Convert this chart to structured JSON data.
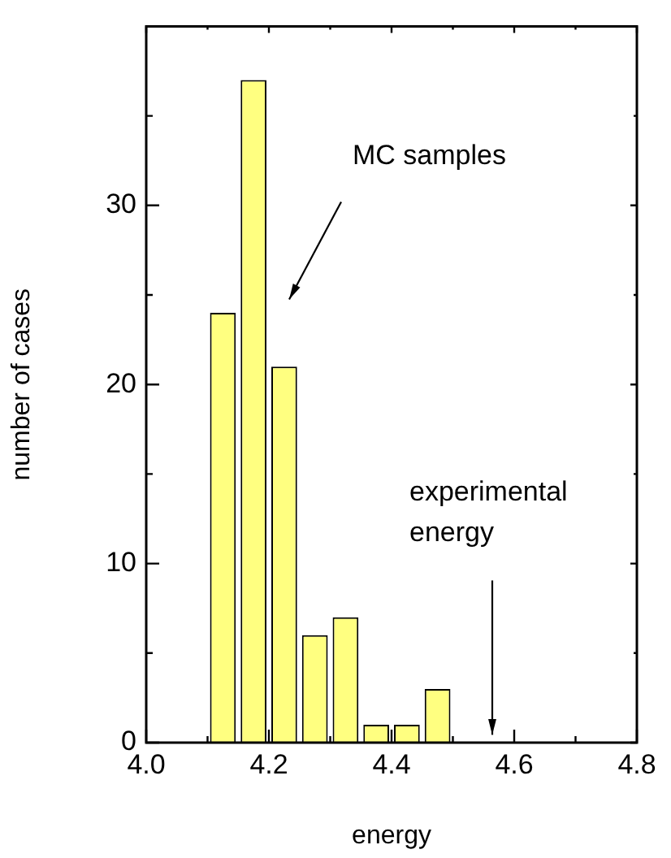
{
  "chart_data": {
    "type": "histogram",
    "xlabel": "energy",
    "ylabel": "number of cases",
    "bins": [
      4.1,
      4.15,
      4.2,
      4.25,
      4.3,
      4.35,
      4.4,
      4.45,
      4.5
    ],
    "values": [
      24,
      37,
      21,
      6,
      7,
      1,
      1,
      3
    ],
    "color": "#ffff80",
    "xlim": [
      4.0,
      4.8
    ],
    "xticks": [
      {
        "value": 4.0,
        "label": "4.0"
      },
      {
        "value": 4.1,
        "label": null
      },
      {
        "value": 4.2,
        "label": "4.2"
      },
      {
        "value": 4.3,
        "label": null
      },
      {
        "value": 4.4,
        "label": "4.4"
      },
      {
        "value": 4.5,
        "label": null
      },
      {
        "value": 4.6,
        "label": "4.6"
      },
      {
        "value": 4.7,
        "label": null
      },
      {
        "value": 4.8,
        "label": "4.8"
      }
    ],
    "ylim": [
      0,
      40
    ],
    "yticks": [
      0,
      {
        "value": 5,
        "label": null
      },
      10,
      {
        "value": 15,
        "label": null
      },
      20,
      {
        "value": 25,
        "label": null
      },
      30,
      {
        "value": 35,
        "label": null
      }
    ],
    "grid": false,
    "legend": false,
    "annotations": [
      "MC samples",
      "experimental energy"
    ]
  }
}
